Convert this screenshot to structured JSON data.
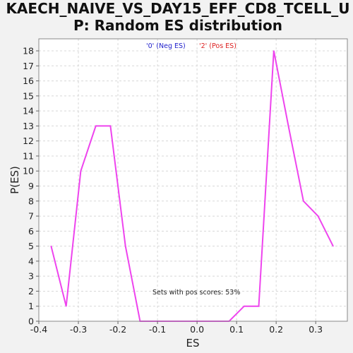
{
  "chart_data": {
    "type": "line",
    "title_lines": [
      "KAECH_NAIVE_VS_DAY15_EFF_CD8_TCELL_U",
      "P: Random ES distribution"
    ],
    "xlabel": "ES",
    "ylabel": "P(ES)",
    "xlim": [
      -0.4,
      0.38
    ],
    "ylim": [
      0,
      18.8
    ],
    "x_ticks": [
      -0.4,
      -0.3,
      -0.2,
      -0.1,
      0.0,
      0.1,
      0.2,
      0.3
    ],
    "x_tick_labels": [
      "-0.4",
      "-0.3",
      "-0.2",
      "-0.1",
      "0.0",
      "0.1",
      "0.2",
      "0.3"
    ],
    "y_ticks": [
      0,
      1,
      2,
      3,
      4,
      5,
      6,
      7,
      8,
      9,
      10,
      11,
      12,
      13,
      14,
      15,
      16,
      17,
      18
    ],
    "grid": true,
    "legend": [
      {
        "label": "'0' (Neg ES)",
        "color": "#2222cc"
      },
      {
        "label": "'2' (Pos ES)",
        "color": "#dd2222"
      }
    ],
    "legend_position": "top-center",
    "annotation": "Sets with pos scores: 53%",
    "series": [
      {
        "color": "#ee44ee",
        "x": [
          -0.369,
          -0.331,
          -0.294,
          -0.256,
          -0.219,
          -0.181,
          -0.144,
          -0.106,
          -0.069,
          -0.031,
          0.006,
          0.044,
          0.081,
          0.119,
          0.156,
          0.194,
          0.231,
          0.269,
          0.306,
          0.344
        ],
        "y": [
          5,
          1,
          10,
          13,
          13,
          5,
          0,
          0,
          0,
          0,
          0,
          0,
          0,
          1,
          1,
          18,
          13,
          8,
          7,
          5
        ]
      }
    ]
  }
}
